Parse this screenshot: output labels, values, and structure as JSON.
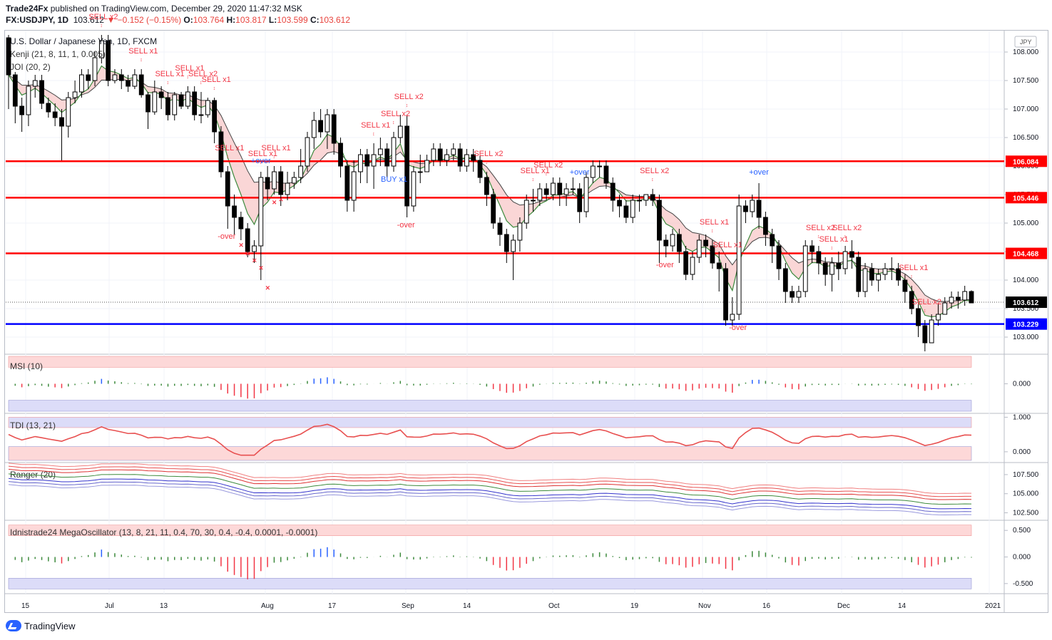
{
  "header": {
    "author": "Trade24Fx",
    "published_text": "published on TradingView.com, December 29, 2020 11:47:32 MSK",
    "symbol": "FX:USDJPY, 1D",
    "last": "103.612",
    "change": "−0.152 (−0.15%)",
    "open_label": "O:",
    "open": "103.764",
    "high_label": "H:",
    "high": "103.817",
    "low_label": "L:",
    "low": "103.599",
    "close_label": "C:",
    "close": "103.612"
  },
  "colors": {
    "up": "#ffffff",
    "down": "#000000",
    "red_level": "#ff0000",
    "blue_level": "#0000ff",
    "sell": "#f23645",
    "buy": "#2962ff",
    "kenji_fill": "#f5b5b5",
    "green": "#3d8a3d"
  },
  "chart_data": [
    {
      "type": "candlestick",
      "title": "U.S. Dollar / Japanese Yen, 1D, FXCM",
      "indicators_shown": [
        "Kenji (21, 8, 11, 1, 0.005)",
        "JOI (20, 2)"
      ],
      "currency_badge": "JPY",
      "ylim": [
        102.75,
        108.35
      ],
      "y_ticks": [
        "108.000",
        "107.500",
        "107.000",
        "106.500",
        "106.000",
        "105.500",
        "105.000",
        "104.500",
        "104.000",
        "103.500",
        "103.000"
      ],
      "x_ticks": [
        "15",
        "Jul",
        "13",
        "Aug",
        "17",
        "Sep",
        "14",
        "Oct",
        "19",
        "Nov",
        "16",
        "Dec",
        "14",
        "2021"
      ],
      "levels": [
        {
          "price": 106.084,
          "label": "106.084",
          "color": "#ff0000"
        },
        {
          "price": 105.446,
          "label": "105.446",
          "color": "#ff0000"
        },
        {
          "price": 104.468,
          "label": "104.468",
          "color": "#ff0000"
        },
        {
          "price": 103.229,
          "label": "103.229",
          "color": "#0000ff"
        }
      ],
      "last_price": {
        "price": 103.612,
        "label": "103.612"
      },
      "candles": [
        [
          108.25,
          107.6,
          108.3,
          107.0
        ],
        [
          107.6,
          107.05,
          107.65,
          106.75
        ],
        [
          107.05,
          106.9,
          107.2,
          106.6
        ],
        [
          106.9,
          107.4,
          107.5,
          106.7
        ],
        [
          107.4,
          107.5,
          107.6,
          107.2
        ],
        [
          107.5,
          107.1,
          107.6,
          107.0
        ],
        [
          107.1,
          106.95,
          107.2,
          106.85
        ],
        [
          106.95,
          106.85,
          107.1,
          106.7
        ],
        [
          106.85,
          106.7,
          107.0,
          106.1
        ],
        [
          106.7,
          107.2,
          107.3,
          106.5
        ],
        [
          107.2,
          107.3,
          107.5,
          107.1
        ],
        [
          107.3,
          107.6,
          107.7,
          107.2
        ],
        [
          107.6,
          107.5,
          107.7,
          107.35
        ],
        [
          107.5,
          107.9,
          108.0,
          107.4
        ],
        [
          107.9,
          108.2,
          108.3,
          107.8
        ],
        [
          108.2,
          107.5,
          108.3,
          107.4
        ],
        [
          107.5,
          107.6,
          107.7,
          107.45
        ],
        [
          107.6,
          107.5,
          107.7,
          107.35
        ],
        [
          107.5,
          107.4,
          107.6,
          107.3
        ],
        [
          107.4,
          107.6,
          107.7,
          107.35
        ],
        [
          107.6,
          107.25,
          107.7,
          107.2
        ],
        [
          107.25,
          106.95,
          107.3,
          106.65
        ],
        [
          106.95,
          107.3,
          107.5,
          106.9
        ],
        [
          107.3,
          107.2,
          107.4,
          107.0
        ],
        [
          107.2,
          106.9,
          107.3,
          106.8
        ],
        [
          106.9,
          107.25,
          107.3,
          106.8
        ],
        [
          107.25,
          107.05,
          107.3,
          107.0
        ],
        [
          107.05,
          107.3,
          107.4,
          107.0
        ],
        [
          107.3,
          106.9,
          107.4,
          106.8
        ],
        [
          106.9,
          106.9,
          107.3,
          106.75
        ],
        [
          106.9,
          107.15,
          107.2,
          106.85
        ],
        [
          107.15,
          106.6,
          107.2,
          106.4
        ],
        [
          106.6,
          105.9,
          106.7,
          105.8
        ],
        [
          105.9,
          105.3,
          106.0,
          104.9
        ],
        [
          105.3,
          105.1,
          105.5,
          104.8
        ],
        [
          105.1,
          104.9,
          105.2,
          104.7
        ],
        [
          104.9,
          104.5,
          105.0,
          104.4
        ],
        [
          104.5,
          104.6,
          104.7,
          104.3
        ],
        [
          104.6,
          105.8,
          105.9,
          104.0
        ],
        [
          105.8,
          105.6,
          106.0,
          105.4
        ],
        [
          105.6,
          105.9,
          106.0,
          105.5
        ],
        [
          105.9,
          105.5,
          106.0,
          105.3
        ],
        [
          105.5,
          105.7,
          105.9,
          105.4
        ],
        [
          105.7,
          105.8,
          105.9,
          105.6
        ],
        [
          105.8,
          106.0,
          106.3,
          105.7
        ],
        [
          106.0,
          106.5,
          106.6,
          105.9
        ],
        [
          106.5,
          106.8,
          106.95,
          106.3
        ],
        [
          106.8,
          106.6,
          107.0,
          106.5
        ],
        [
          106.6,
          106.9,
          107.0,
          106.3
        ],
        [
          106.9,
          106.4,
          107.0,
          106.2
        ],
        [
          106.4,
          106.0,
          106.5,
          105.8
        ],
        [
          106.0,
          105.4,
          106.1,
          105.2
        ],
        [
          105.4,
          105.9,
          106.1,
          105.2
        ],
        [
          105.9,
          106.2,
          106.3,
          105.7
        ],
        [
          106.2,
          106.0,
          106.3,
          105.7
        ],
        [
          106.0,
          106.2,
          106.4,
          105.6
        ],
        [
          106.2,
          106.3,
          106.5,
          106.0
        ],
        [
          106.3,
          106.0,
          106.4,
          105.8
        ],
        [
          106.0,
          106.5,
          106.6,
          105.9
        ],
        [
          106.5,
          106.7,
          106.9,
          106.4
        ],
        [
          106.7,
          105.3,
          106.9,
          105.1
        ],
        [
          105.3,
          105.9,
          106.0,
          105.2
        ],
        [
          105.9,
          105.9,
          106.2,
          105.7
        ],
        [
          105.9,
          106.1,
          106.2,
          105.9
        ],
        [
          106.1,
          106.3,
          106.4,
          106.0
        ],
        [
          106.3,
          106.1,
          106.4,
          106.0
        ],
        [
          106.1,
          106.2,
          106.3,
          106.0
        ],
        [
          106.2,
          106.3,
          106.4,
          106.1
        ],
        [
          106.3,
          106.0,
          106.4,
          105.9
        ],
        [
          106.0,
          106.2,
          106.3,
          105.9
        ],
        [
          106.2,
          106.1,
          106.3,
          105.9
        ],
        [
          106.1,
          105.8,
          106.2,
          105.7
        ],
        [
          105.8,
          105.5,
          105.9,
          105.3
        ],
        [
          105.5,
          105.0,
          105.6,
          104.9
        ],
        [
          105.0,
          104.8,
          105.1,
          104.6
        ],
        [
          104.8,
          104.5,
          104.9,
          104.3
        ],
        [
          104.5,
          104.7,
          104.8,
          104.0
        ],
        [
          104.7,
          105.0,
          105.1,
          104.5
        ],
        [
          105.0,
          105.4,
          105.5,
          104.9
        ],
        [
          105.4,
          105.4,
          105.6,
          105.2
        ],
        [
          105.4,
          105.6,
          105.7,
          105.3
        ],
        [
          105.6,
          105.5,
          105.7,
          105.4
        ],
        [
          105.5,
          105.7,
          105.8,
          105.4
        ],
        [
          105.7,
          105.5,
          105.8,
          105.3
        ],
        [
          105.5,
          105.6,
          105.7,
          105.3
        ],
        [
          105.6,
          105.6,
          105.8,
          105.5
        ],
        [
          105.6,
          105.2,
          105.7,
          105.0
        ],
        [
          105.2,
          105.8,
          105.9,
          105.1
        ],
        [
          105.8,
          106.0,
          106.1,
          105.7
        ],
        [
          106.0,
          106.0,
          106.1,
          105.8
        ],
        [
          106.0,
          105.7,
          106.1,
          105.6
        ],
        [
          105.7,
          105.4,
          105.8,
          105.2
        ],
        [
          105.4,
          105.3,
          105.5,
          105.1
        ],
        [
          105.3,
          105.1,
          105.4,
          105.0
        ],
        [
          105.1,
          105.4,
          105.5,
          105.0
        ],
        [
          105.4,
          105.4,
          105.5,
          105.2
        ],
        [
          105.4,
          105.5,
          105.5,
          105.3
        ],
        [
          105.5,
          105.4,
          105.6,
          105.3
        ],
        [
          105.4,
          104.7,
          105.5,
          104.3
        ],
        [
          104.7,
          104.6,
          104.8,
          104.4
        ],
        [
          104.6,
          104.8,
          104.9,
          104.5
        ],
        [
          104.8,
          104.5,
          104.9,
          104.3
        ],
        [
          104.5,
          104.1,
          104.6,
          104.0
        ],
        [
          104.1,
          104.4,
          104.5,
          104.0
        ],
        [
          104.4,
          104.7,
          104.8,
          104.3
        ],
        [
          104.7,
          104.6,
          104.8,
          104.4
        ],
        [
          104.6,
          104.3,
          104.7,
          104.2
        ],
        [
          104.3,
          104.2,
          104.5,
          103.8
        ],
        [
          104.2,
          103.3,
          104.3,
          103.2
        ],
        [
          103.3,
          103.4,
          103.7,
          103.2
        ],
        [
          103.4,
          105.3,
          105.5,
          103.3
        ],
        [
          105.3,
          105.2,
          105.4,
          105.0
        ],
        [
          105.2,
          105.4,
          105.5,
          105.1
        ],
        [
          105.4,
          105.1,
          105.7,
          104.9
        ],
        [
          105.1,
          104.8,
          105.2,
          104.6
        ],
        [
          104.8,
          104.6,
          104.9,
          104.3
        ],
        [
          104.6,
          104.2,
          104.7,
          104.0
        ],
        [
          104.2,
          103.8,
          104.3,
          103.6
        ],
        [
          103.8,
          103.7,
          103.9,
          103.6
        ],
        [
          103.7,
          103.8,
          103.9,
          103.6
        ],
        [
          103.8,
          104.6,
          104.7,
          103.7
        ],
        [
          104.6,
          104.5,
          104.7,
          104.3
        ],
        [
          104.5,
          104.3,
          104.6,
          104.1
        ],
        [
          104.3,
          104.1,
          104.4,
          103.9
        ],
        [
          104.1,
          104.3,
          104.4,
          103.8
        ],
        [
          104.3,
          104.2,
          104.5,
          104.0
        ],
        [
          104.2,
          104.5,
          104.6,
          104.1
        ],
        [
          104.5,
          104.4,
          104.7,
          104.2
        ],
        [
          104.4,
          103.8,
          104.5,
          103.7
        ],
        [
          103.8,
          104.2,
          104.3,
          103.7
        ],
        [
          104.2,
          104.0,
          104.3,
          103.9
        ],
        [
          104.0,
          104.1,
          104.2,
          103.8
        ],
        [
          104.1,
          104.2,
          104.3,
          104.0
        ],
        [
          104.2,
          104.2,
          104.4,
          104.0
        ],
        [
          104.2,
          104.0,
          104.3,
          103.9
        ],
        [
          104.0,
          103.8,
          104.1,
          103.6
        ],
        [
          103.8,
          103.5,
          103.9,
          103.4
        ],
        [
          103.5,
          103.2,
          103.6,
          103.0
        ],
        [
          103.2,
          102.9,
          103.3,
          102.75
        ],
        [
          102.9,
          103.3,
          103.4,
          102.9
        ],
        [
          103.3,
          103.4,
          103.6,
          103.2
        ],
        [
          103.4,
          103.6,
          103.7,
          103.4
        ],
        [
          103.6,
          103.7,
          103.8,
          103.5
        ],
        [
          103.7,
          103.65,
          103.8,
          103.5
        ],
        [
          103.65,
          103.8,
          103.9,
          103.55
        ],
        [
          103.8,
          103.6,
          103.82,
          103.6
        ]
      ],
      "signals": [
        {
          "idx": 14,
          "text": "SELL x2",
          "kind": "sell"
        },
        {
          "idx": 20,
          "text": "SELL x1",
          "kind": "sell"
        },
        {
          "idx": 24,
          "text": "SELL x1",
          "kind": "sell"
        },
        {
          "idx": 27,
          "text": "SELL x1",
          "kind": "sell"
        },
        {
          "idx": 29,
          "text": "SELL x2",
          "kind": "sell"
        },
        {
          "idx": 31,
          "text": "SELL x1",
          "kind": "sell"
        },
        {
          "idx": 33,
          "text": "SELL x1",
          "kind": "sell"
        },
        {
          "idx": 38,
          "text": "SELL x1",
          "kind": "sell"
        },
        {
          "idx": 40,
          "text": "SELL x1",
          "kind": "sell"
        },
        {
          "idx": 55,
          "text": "SELL x1",
          "kind": "sell"
        },
        {
          "idx": 58,
          "text": "SELL x2",
          "kind": "sell"
        },
        {
          "idx": 60,
          "text": "SELL x2",
          "kind": "sell"
        },
        {
          "idx": 72,
          "text": "SELL x2",
          "kind": "sell"
        },
        {
          "idx": 79,
          "text": "SELL x1",
          "kind": "sell"
        },
        {
          "idx": 81,
          "text": "SELL x2",
          "kind": "sell"
        },
        {
          "idx": 97,
          "text": "SELL x2",
          "kind": "sell"
        },
        {
          "idx": 106,
          "text": "SELL x1",
          "kind": "sell"
        },
        {
          "idx": 108,
          "text": "SELL x1",
          "kind": "sell"
        },
        {
          "idx": 122,
          "text": "SELL x2",
          "kind": "sell"
        },
        {
          "idx": 124,
          "text": "SELL x1",
          "kind": "sell"
        },
        {
          "idx": 126,
          "text": "SELL x2",
          "kind": "sell"
        },
        {
          "idx": 136,
          "text": "SELL x1",
          "kind": "sell"
        },
        {
          "idx": 138,
          "text": "SELL x2",
          "kind": "sell"
        },
        {
          "idx": 146,
          "text": "SELL x1",
          "kind": "sell"
        },
        {
          "idx": 150,
          "text": "SELL x1",
          "kind": "sell"
        },
        {
          "idx": 58,
          "text": "BUY x1",
          "kind": "buy"
        }
      ],
      "over_labels": [
        "+over",
        "-over",
        "-over",
        "+over",
        "-over",
        "+over",
        "-over"
      ]
    },
    {
      "type": "bar",
      "title": "MSI (10)",
      "y_ticks": [
        "0.000"
      ],
      "ylim": [
        -1,
        1
      ]
    },
    {
      "type": "line",
      "title": "TDI (13, 21)",
      "y_ticks": [
        "1.000",
        "0.000"
      ],
      "ylim": [
        -0.25,
        1.05
      ]
    },
    {
      "type": "line",
      "title": "Ranger (20)",
      "y_ticks": [
        "107.500",
        "105.000",
        "102.500"
      ],
      "ylim": [
        101.8,
        108.8
      ]
    },
    {
      "type": "bar",
      "title": "Idnistrade24 MegaOscillator (13, 8, 21, 11, 0.4, 70, 30, 0.4, -0.4, 0.0001, -0.0001)",
      "y_ticks": [
        "0.500",
        "0.000",
        "-0.500"
      ],
      "ylim": [
        -0.65,
        0.65
      ]
    }
  ],
  "footer": {
    "brand": "TradingView"
  }
}
